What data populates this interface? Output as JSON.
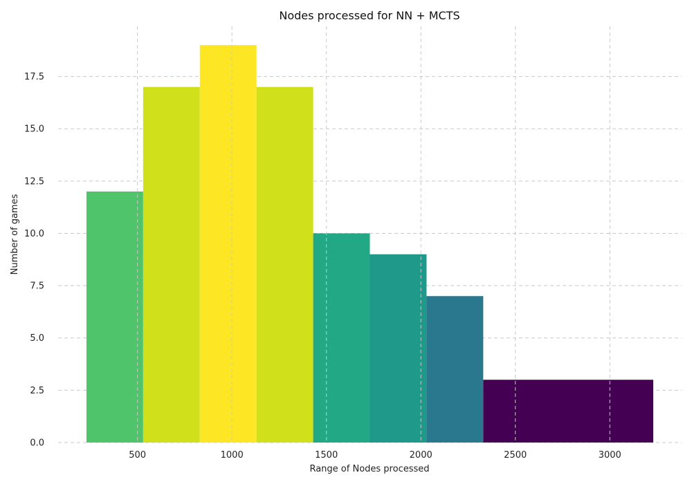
{
  "chart_data": {
    "type": "bar",
    "title": "Nodes processed for NN + MCTS",
    "xlabel": "Range of Nodes processed",
    "ylabel": "Number of games",
    "xlim": [
      80,
      3380
    ],
    "ylim": [
      0,
      19.9
    ],
    "grid": true,
    "xticks": [
      500,
      1000,
      1500,
      2000,
      2500,
      3000
    ],
    "xtick_labels": [
      "500",
      "1000",
      "1500",
      "2000",
      "2500",
      "3000"
    ],
    "yticks": [
      0,
      2.5,
      5,
      7.5,
      10,
      12.5,
      15,
      17.5
    ],
    "ytick_labels": [
      "0.0",
      "2.5",
      "5.0",
      "7.5",
      "10.0",
      "12.5",
      "15.0",
      "17.5"
    ],
    "bins": [
      {
        "x0": 230,
        "x1": 530,
        "value": 12,
        "color": "#4fc46a"
      },
      {
        "x0": 530,
        "x1": 830,
        "value": 17,
        "color": "#d0e11c"
      },
      {
        "x0": 830,
        "x1": 1130,
        "value": 19,
        "color": "#fde725"
      },
      {
        "x0": 1130,
        "x1": 1430,
        "value": 17,
        "color": "#d0e11c"
      },
      {
        "x0": 1430,
        "x1": 1730,
        "value": 10,
        "color": "#22a884"
      },
      {
        "x0": 1730,
        "x1": 2030,
        "value": 9,
        "color": "#1f9a8a"
      },
      {
        "x0": 2030,
        "x1": 2330,
        "value": 7,
        "color": "#2a788e"
      },
      {
        "x0": 2330,
        "x1": 3230,
        "value": 3,
        "color": "#440154"
      }
    ]
  }
}
